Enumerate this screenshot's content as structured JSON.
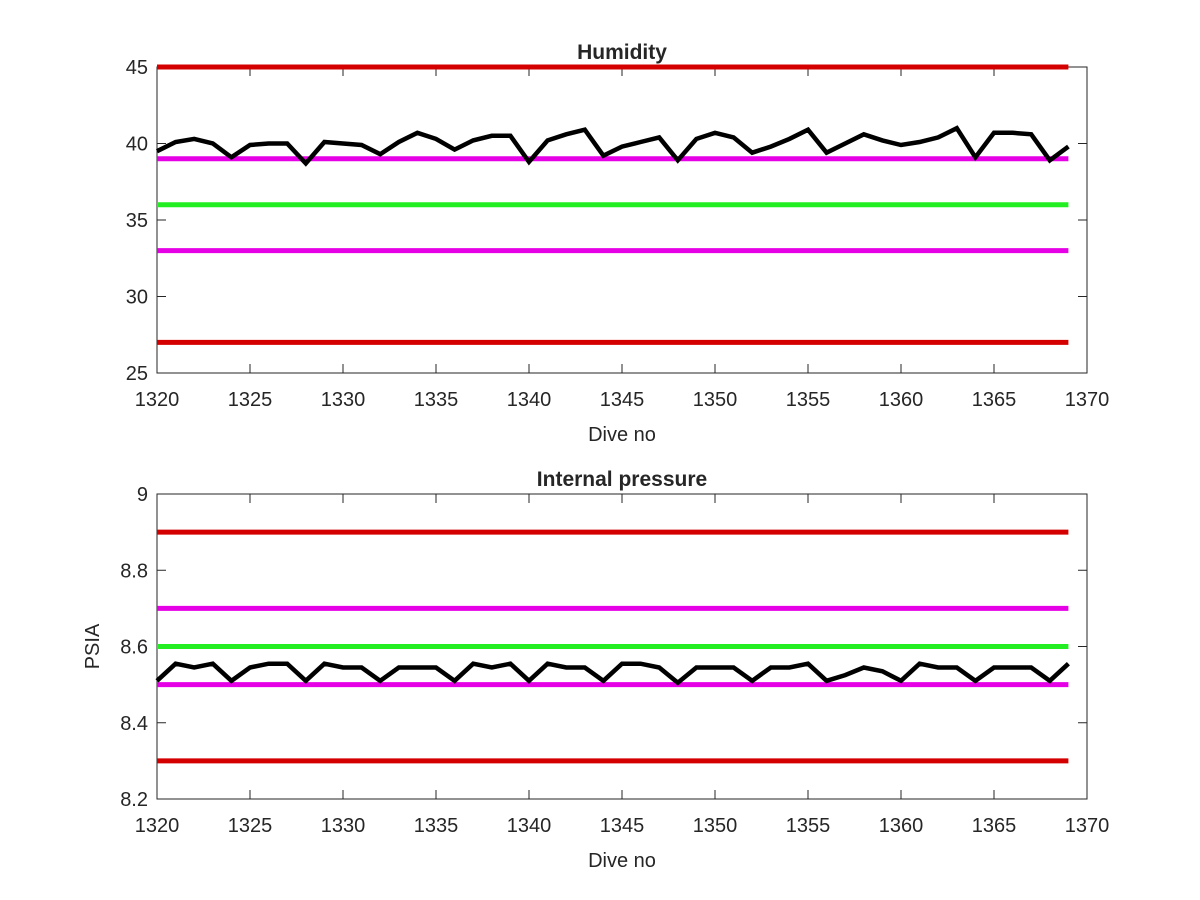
{
  "chart_data": [
    {
      "type": "line",
      "title": "Humidity",
      "xlabel": "Dive no",
      "ylabel": "",
      "xlim": [
        1320,
        1370
      ],
      "ylim": [
        25,
        45
      ],
      "xticks": [
        "1320",
        "1325",
        "1330",
        "1335",
        "1340",
        "1345",
        "1350",
        "1355",
        "1360",
        "1365",
        "1370"
      ],
      "yticks": [
        "25",
        "30",
        "35",
        "40",
        "45"
      ],
      "grid": false,
      "reference_lines": [
        {
          "y": 45,
          "color": "#d40000"
        },
        {
          "y": 39,
          "color": "#e600e6"
        },
        {
          "y": 36,
          "color": "#22ee22"
        },
        {
          "y": 33,
          "color": "#e600e6"
        },
        {
          "y": 27,
          "color": "#d40000"
        }
      ],
      "series": [
        {
          "color": "#000000",
          "x": [
            1320,
            1321,
            1322,
            1323,
            1324,
            1325,
            1326,
            1327,
            1328,
            1329,
            1330,
            1331,
            1332,
            1333,
            1334,
            1335,
            1336,
            1337,
            1338,
            1339,
            1340,
            1341,
            1342,
            1343,
            1344,
            1345,
            1346,
            1347,
            1348,
            1349,
            1350,
            1351,
            1352,
            1353,
            1354,
            1355,
            1356,
            1357,
            1358,
            1359,
            1360,
            1361,
            1362,
            1363,
            1364,
            1365,
            1366,
            1367,
            1368,
            1369
          ],
          "y": [
            39.5,
            40.1,
            40.3,
            40.0,
            39.1,
            39.9,
            40.0,
            40.0,
            38.7,
            40.1,
            40.0,
            39.9,
            39.3,
            40.1,
            40.7,
            40.3,
            39.6,
            40.2,
            40.5,
            40.5,
            38.8,
            40.2,
            40.6,
            40.9,
            39.2,
            39.8,
            40.1,
            40.4,
            38.9,
            40.3,
            40.7,
            40.4,
            39.4,
            39.8,
            40.3,
            40.9,
            39.4,
            40.0,
            40.6,
            40.2,
            39.9,
            40.1,
            40.4,
            41.0,
            39.1,
            40.7,
            40.7,
            40.6,
            38.9,
            39.8
          ]
        }
      ]
    },
    {
      "type": "line",
      "title": "Internal pressure",
      "xlabel": "Dive no",
      "ylabel": "PSIA",
      "xlim": [
        1320,
        1370
      ],
      "ylim": [
        8.2,
        9.0
      ],
      "xticks": [
        "1320",
        "1325",
        "1330",
        "1335",
        "1340",
        "1345",
        "1350",
        "1355",
        "1360",
        "1365",
        "1370"
      ],
      "yticks": [
        "8.2",
        "8.4",
        "8.6",
        "8.8",
        "9"
      ],
      "grid": false,
      "reference_lines": [
        {
          "y": 8.9,
          "color": "#d40000"
        },
        {
          "y": 8.7,
          "color": "#e600e6"
        },
        {
          "y": 8.6,
          "color": "#22ee22"
        },
        {
          "y": 8.5,
          "color": "#e600e6"
        },
        {
          "y": 8.3,
          "color": "#d40000"
        }
      ],
      "series": [
        {
          "color": "#000000",
          "x": [
            1320,
            1321,
            1322,
            1323,
            1324,
            1325,
            1326,
            1327,
            1328,
            1329,
            1330,
            1331,
            1332,
            1333,
            1334,
            1335,
            1336,
            1337,
            1338,
            1339,
            1340,
            1341,
            1342,
            1343,
            1344,
            1345,
            1346,
            1347,
            1348,
            1349,
            1350,
            1351,
            1352,
            1353,
            1354,
            1355,
            1356,
            1357,
            1358,
            1359,
            1360,
            1361,
            1362,
            1363,
            1364,
            1365,
            1366,
            1367,
            1368,
            1369
          ],
          "y": [
            8.51,
            8.555,
            8.545,
            8.555,
            8.51,
            8.545,
            8.555,
            8.555,
            8.51,
            8.555,
            8.545,
            8.545,
            8.51,
            8.545,
            8.545,
            8.545,
            8.51,
            8.555,
            8.545,
            8.555,
            8.51,
            8.555,
            8.545,
            8.545,
            8.51,
            8.555,
            8.555,
            8.545,
            8.505,
            8.545,
            8.545,
            8.545,
            8.51,
            8.545,
            8.545,
            8.555,
            8.51,
            8.525,
            8.545,
            8.535,
            8.51,
            8.555,
            8.545,
            8.545,
            8.51,
            8.545,
            8.545,
            8.545,
            8.51,
            8.555
          ]
        }
      ]
    }
  ]
}
